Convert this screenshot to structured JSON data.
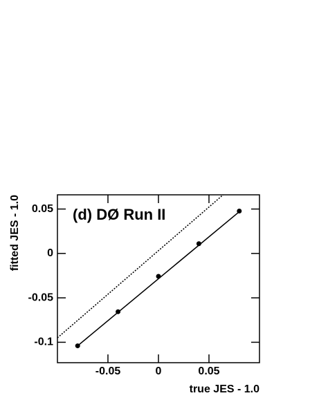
{
  "chart_data": {
    "type": "scatter",
    "annotation": "(d)  DØ Run II",
    "x_label": "true JES - 1.0",
    "y_label": "fitted JES - 1.0",
    "xlim": [
      -0.1,
      0.1
    ],
    "ylim": [
      -0.123,
      0.066
    ],
    "xticks": [
      -0.05,
      0,
      0.05
    ],
    "yticks": [
      -0.1,
      -0.05,
      0,
      0.05
    ],
    "series": [
      {
        "style": "markers",
        "color": "#000000",
        "x": [
          -0.08,
          -0.04,
          0,
          0.04,
          0.08
        ],
        "values": [
          -0.104,
          -0.0656,
          -0.0258,
          0.011,
          0.0477
        ]
      },
      {
        "style": "line",
        "color": "#000000",
        "x": [
          -0.08,
          0.08
        ],
        "values": [
          -0.104,
          0.047
        ]
      },
      {
        "style": "dotted",
        "color": "#000000",
        "x": [
          -0.1,
          0.064
        ],
        "values": [
          -0.095,
          0.066
        ]
      }
    ]
  }
}
